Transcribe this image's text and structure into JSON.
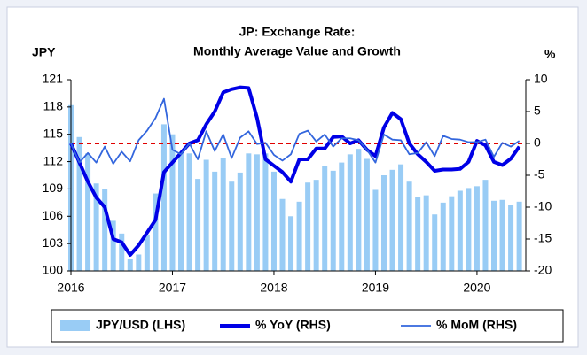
{
  "chart_data": {
    "type": "bar-line",
    "title": [
      "JP: Exchange Rate:",
      "Monthly Average Value and Growth"
    ],
    "y_label": "JPY",
    "y2_label": "%",
    "categories": [
      "2016",
      null,
      null,
      null,
      null,
      null,
      null,
      null,
      null,
      null,
      null,
      null,
      "2017",
      null,
      null,
      null,
      null,
      null,
      null,
      null,
      null,
      null,
      null,
      null,
      "2018",
      null,
      null,
      null,
      null,
      null,
      null,
      null,
      null,
      null,
      null,
      null,
      "2019",
      null,
      null,
      null,
      null,
      null,
      null,
      null,
      null,
      null,
      null,
      null,
      "2020",
      null,
      null,
      null,
      null,
      null
    ],
    "ylim": [
      100,
      121
    ],
    "yticks": [
      100,
      103,
      106,
      109,
      112,
      115,
      118,
      121
    ],
    "y2lim": [
      -20,
      10
    ],
    "y2ticks": [
      -20,
      -15,
      -10,
      -5,
      0,
      5,
      10
    ],
    "series": [
      {
        "name": "JPY/USD (LHS)",
        "kind": "bar",
        "color": "#99ccf5",
        "axis": "y",
        "values": [
          118.2,
          114.7,
          112.9,
          109.6,
          109.0,
          105.5,
          104.1,
          101.3,
          101.8,
          103.9,
          108.5,
          116.1,
          115.0,
          113.0,
          112.9,
          110.1,
          112.2,
          110.9,
          112.4,
          109.8,
          110.8,
          112.9,
          112.8,
          112.9,
          110.9,
          107.9,
          106.0,
          107.6,
          109.7,
          110.0,
          111.5,
          111.0,
          111.9,
          112.8,
          113.4,
          112.3,
          108.9,
          110.5,
          111.1,
          111.7,
          109.8,
          108.1,
          108.3,
          106.2,
          107.5,
          108.2,
          108.8,
          109.1,
          109.3,
          110.0,
          107.7,
          107.8,
          107.2,
          107.6
        ]
      },
      {
        "name": "% YoY (RHS)",
        "kind": "line",
        "color": "#0000e6",
        "axis": "y2",
        "values": [
          0,
          -3,
          -6,
          -8.5,
          -10,
          -15,
          -15.5,
          -17.5,
          -16,
          -14,
          -12,
          -4.5,
          -3,
          -1.5,
          0,
          0.5,
          3,
          5,
          8,
          8.5,
          8.8,
          8.7,
          4,
          -2.5,
          -3.5,
          -4.5,
          -6,
          -2.5,
          -2.5,
          -0.8,
          -0.8,
          1.0,
          1.1,
          0,
          0.5,
          -1,
          -2,
          2.5,
          4.8,
          3.8,
          0,
          -1.7,
          -2.9,
          -4.3,
          -4.1,
          -4.1,
          -4.0,
          -2.9,
          0.4,
          -0.3,
          -2.9,
          -3.4,
          -2.4,
          -0.5
        ]
      },
      {
        "name": "% MoM (RHS)",
        "kind": "line",
        "color": "#3366dd",
        "axis": "y2",
        "values": [
          0,
          -3,
          -1.5,
          -3,
          -0.5,
          -3.2,
          -1.3,
          -2.8,
          0.5,
          2,
          4,
          7,
          -1,
          -1.7,
          0,
          -2.5,
          1.9,
          -1.2,
          1.4,
          -2.3,
          0.9,
          1.9,
          -0.1,
          0.1,
          -1.8,
          -2.7,
          -1.7,
          1.5,
          2.0,
          0.3,
          1.4,
          -0.5,
          0.8,
          0.8,
          0.5,
          -1.0,
          -3.0,
          1.4,
          0.6,
          0.5,
          -1.7,
          -1.5,
          0.2,
          -2.0,
          1.2,
          0.7,
          0.6,
          0.2,
          0.2,
          0.6,
          -2.1,
          0.1,
          -0.5,
          0.4
        ]
      }
    ],
    "zero_line_color": "#e00000"
  }
}
